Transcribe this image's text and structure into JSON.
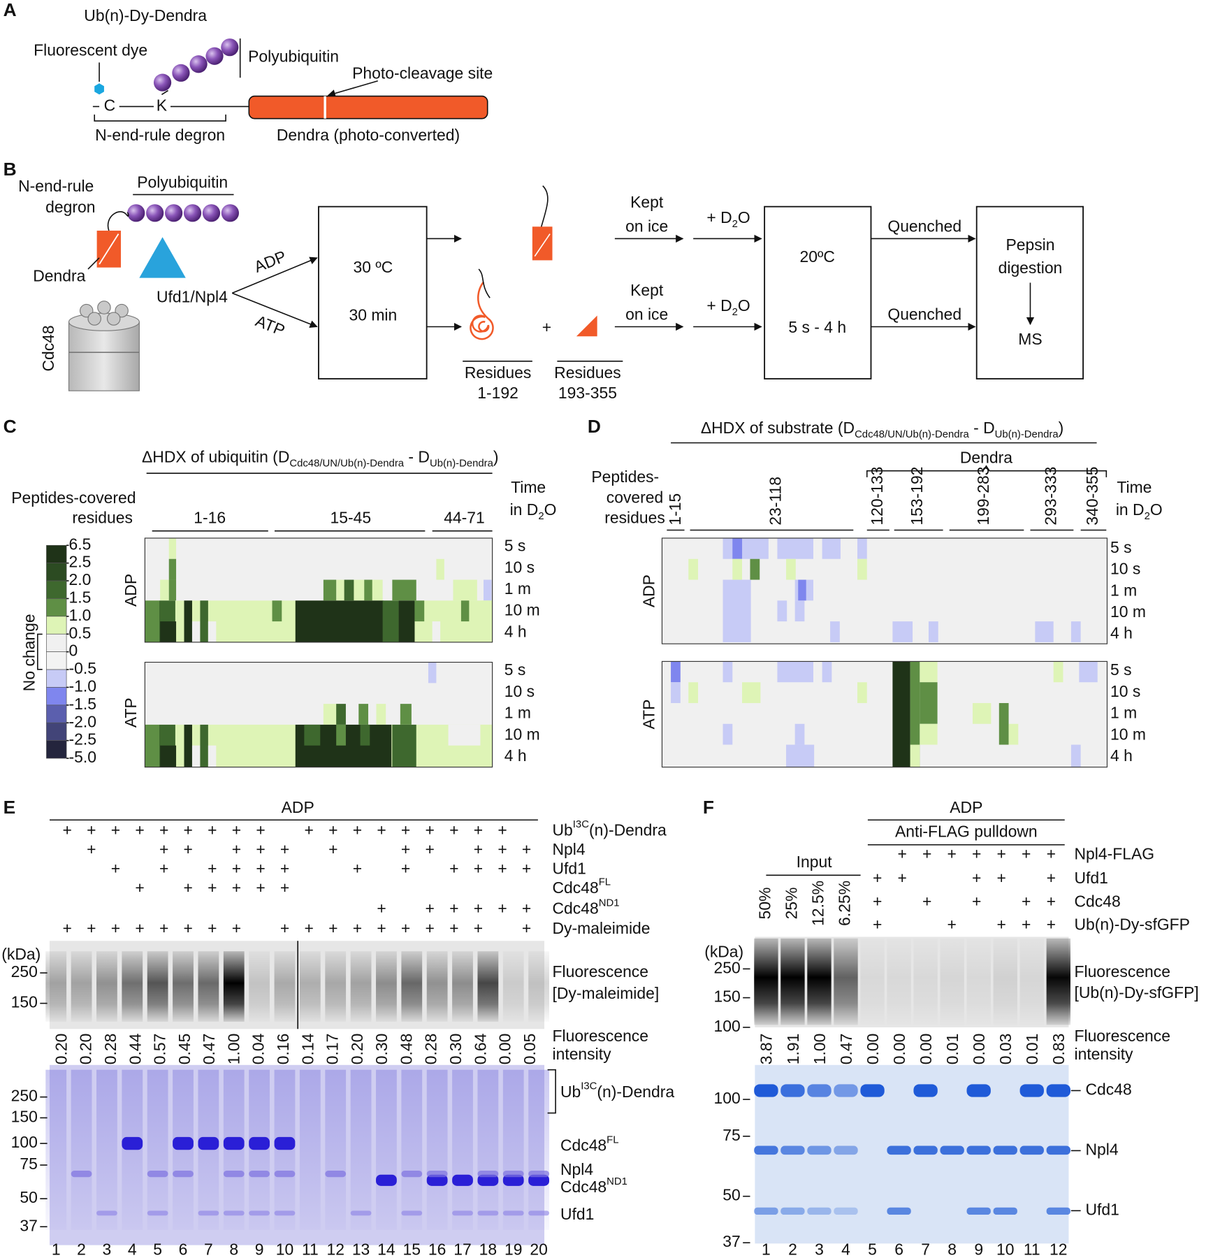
{
  "panel_a": {
    "letter": "A",
    "title": "Ub(n)-Dy-Dendra",
    "dye": "Fluorescent dye",
    "polyubiquitin": "Polyubiquitin",
    "cleavage": "Photo-cleavage site",
    "cys": "C",
    "lys": "K",
    "degron": "N-end-rule degron",
    "dendra": "Dendra (photo-converted)"
  },
  "panel_b": {
    "letter": "B",
    "degron": [
      "N-end-rule",
      "degron"
    ],
    "polyubiquitin": "Polyubiquitin",
    "dendra": "Dendra",
    "adaptor": "Ufd1/Npl4",
    "cdc48": "Cdc48",
    "adp": "ADP",
    "atp": "ATP",
    "incubation": [
      "30 ºC",
      "30 min"
    ],
    "kept": [
      [
        "Kept",
        "on ice"
      ],
      [
        "Kept",
        "on ice"
      ]
    ],
    "d2o": [
      {
        "pre": "+ D",
        "sub": "2",
        "post": "O"
      },
      {
        "pre": "+ D",
        "sub": "2",
        "post": "O"
      }
    ],
    "exchange": [
      "20ºC",
      "5 s - 4 h"
    ],
    "quenched": [
      "Quenched",
      "Quenched"
    ],
    "digestion": [
      "Pepsin",
      "digestion"
    ],
    "ms": "MS",
    "fragments": [
      [
        "Residues",
        "1-192"
      ],
      [
        "Residues",
        "193-355"
      ]
    ],
    "plus": "+"
  },
  "panel_c": {
    "letter": "C",
    "title": {
      "pre": "ΔHDX of ubiquitin (D",
      "sub1": "Cdc48/UN/Ub(n)-Dendra",
      "mid": " - D",
      "sub2": "Ub(n)-Dendra",
      "post": ")"
    },
    "peptides_label": [
      "Peptides-covered",
      "residues"
    ],
    "peptides": [
      "1-16",
      "15-45",
      "44-71"
    ],
    "time_label": {
      "line1": "Time",
      "pre": "in D",
      "sub": "2",
      "post": "O"
    },
    "times": [
      "5 s",
      "10 s",
      "1 m",
      "10 m",
      "4 h"
    ],
    "conditions": [
      "ADP",
      "ATP"
    ],
    "scale": {
      "ticks": [
        6.5,
        2.5,
        {
          "value": 2,
          "label": "2.0"
        },
        1.5,
        {
          "value": 1,
          "label": "1.0"
        },
        0.5,
        0,
        -0.5,
        {
          "value": -1,
          "label": "-1.0"
        },
        -1.5,
        {
          "value": -2,
          "label": "-2.0"
        },
        -2.5,
        {
          "value": -5,
          "label": "-5.0"
        }
      ],
      "colors": [
        "#1f3318",
        "#2c4b22",
        "#3e682e",
        "#5f8f45",
        "#def4b6",
        "#f0f0f0",
        "#f3f3f3",
        "#c7cbf6",
        "#7f86ee",
        "#5b5fae",
        "#424478",
        "#24253d"
      ],
      "no_change": "No change"
    }
  },
  "panel_d": {
    "letter": "D",
    "title": {
      "pre": "ΔHDX of substrate (D",
      "sub1": "Cdc48/UN/Ub(n)-Dendra",
      "mid": " - D",
      "sub2": "Ub(n)-Dendra",
      "post": ")"
    },
    "group": "Dendra",
    "peptides_label": [
      "Peptides-",
      "covered",
      "residues"
    ],
    "peptides": [
      "1-15",
      "23-118",
      "120-133",
      "153-192",
      "199-283",
      "293-333",
      "340-355"
    ],
    "time_label": {
      "line1": "Time",
      "pre": "in D",
      "sub": "2",
      "post": "O"
    },
    "times": [
      "5 s",
      "10 s",
      "1 m",
      "10 m",
      "4 h"
    ],
    "conditions": [
      "ADP",
      "ATP"
    ]
  },
  "panel_e": {
    "letter": "E",
    "condition": "ADP",
    "rows": [
      {
        "label": {
          "text": "Ub",
          "sup": "I3C",
          "post": "(n)-Dendra"
        },
        "marks": [
          "+",
          "+",
          "+",
          "+",
          "+",
          "+",
          "+",
          "+",
          "+",
          null,
          "+",
          "+",
          "+",
          "+",
          "+",
          "+",
          "+",
          "+",
          "+",
          null
        ]
      },
      {
        "label": {
          "text": "Npl4"
        },
        "marks": [
          null,
          "+",
          null,
          null,
          "+",
          "+",
          null,
          "+",
          "+",
          "+",
          null,
          "+",
          null,
          null,
          "+",
          "+",
          null,
          "+",
          "+",
          "+"
        ]
      },
      {
        "label": {
          "text": "Ufd1"
        },
        "marks": [
          null,
          null,
          "+",
          null,
          "+",
          null,
          "+",
          "+",
          "+",
          "+",
          null,
          null,
          "+",
          null,
          "+",
          null,
          "+",
          "+",
          "+",
          "+"
        ]
      },
      {
        "label": {
          "text": "Cdc48",
          "sup": "FL"
        },
        "marks": [
          null,
          null,
          null,
          "+",
          null,
          "+",
          "+",
          "+",
          "+",
          "+",
          null,
          null,
          null,
          null,
          null,
          null,
          null,
          null,
          null,
          null
        ]
      },
      {
        "label": {
          "text": "Cdc48",
          "sup": "ND1"
        },
        "marks": [
          null,
          null,
          null,
          null,
          null,
          null,
          null,
          null,
          null,
          null,
          null,
          null,
          null,
          "+",
          null,
          "+",
          "+",
          "+",
          "+",
          "+"
        ]
      },
      {
        "label": {
          "text": "Dy-maleimide"
        },
        "marks": [
          "+",
          "+",
          "+",
          "+",
          "+",
          "+",
          "+",
          "+",
          null,
          "+",
          "+",
          "+",
          "+",
          "+",
          "+",
          "+",
          "+",
          "+",
          null,
          "+"
        ]
      }
    ],
    "kda": "(kDa)",
    "markers_fluor": [
      250,
      150
    ],
    "markers_gel": [
      250,
      150,
      100,
      75,
      50,
      37
    ],
    "fluor_label": [
      "Fluorescence",
      "[Dy-maleimide]"
    ],
    "intensity_label": [
      "Fluorescence",
      "intensity"
    ],
    "intensities": [
      "0.20",
      "0.20",
      "0.28",
      "0.44",
      "0.57",
      "0.45",
      "0.47",
      "1.00",
      "0.04",
      "0.16",
      "0.14",
      "0.17",
      "0.20",
      "0.30",
      "0.48",
      "0.28",
      "0.30",
      "0.64",
      "0.00",
      "0.05"
    ],
    "bands": [
      {
        "text": "Ub",
        "sup": "I3C",
        "post": "(n)-Dendra"
      },
      {
        "text": "Cdc48",
        "sup": "FL"
      },
      {
        "text": "Npl4"
      },
      {
        "text": "Cdc48",
        "sup": "ND1"
      },
      {
        "text": "Ufd1"
      }
    ],
    "lanes": [
      1,
      2,
      3,
      4,
      5,
      6,
      7,
      8,
      9,
      10,
      11,
      12,
      13,
      14,
      15,
      16,
      17,
      18,
      19,
      20
    ]
  },
  "panel_f": {
    "letter": "F",
    "condition": "ADP",
    "pulldown": "Anti-FLAG pulldown",
    "input": "Input",
    "input_amounts": [
      "50%",
      "25%",
      "12.5%",
      "6.25%"
    ],
    "rows": [
      {
        "label": "Npl4-FLAG",
        "marks": [
          null,
          "+",
          "+",
          "+",
          "+",
          "+",
          "+",
          "+"
        ]
      },
      {
        "label": "Ufd1",
        "marks": [
          "+",
          "+",
          null,
          null,
          "+",
          "+",
          null,
          "+"
        ]
      },
      {
        "label": "Cdc48",
        "marks": [
          "+",
          null,
          "+",
          null,
          "+",
          null,
          "+",
          "+"
        ]
      },
      {
        "label": "Ub(n)-Dy-sfGFP",
        "marks": [
          "+",
          null,
          null,
          "+",
          null,
          "+",
          "+",
          "+"
        ]
      }
    ],
    "kda": "(kDa)",
    "markers_fluor": [
      250,
      150,
      100
    ],
    "markers_gel": [
      100,
      75,
      50,
      37
    ],
    "fluor_label": [
      "Fluorescence",
      "[Ub(n)-Dy-sfGFP]"
    ],
    "intensity_label": [
      "Fluorescence",
      "intensity"
    ],
    "intensities": [
      "3.87",
      "1.91",
      "1.00",
      "0.47",
      "0.00",
      "0.00",
      "0.00",
      "0.01",
      "0.00",
      "0.03",
      "0.01",
      "0.83"
    ],
    "bands": [
      "Cdc48",
      "Npl4",
      "Ufd1"
    ],
    "lanes": [
      1,
      2,
      3,
      4,
      5,
      6,
      7,
      8,
      9,
      10,
      11,
      12
    ]
  }
}
